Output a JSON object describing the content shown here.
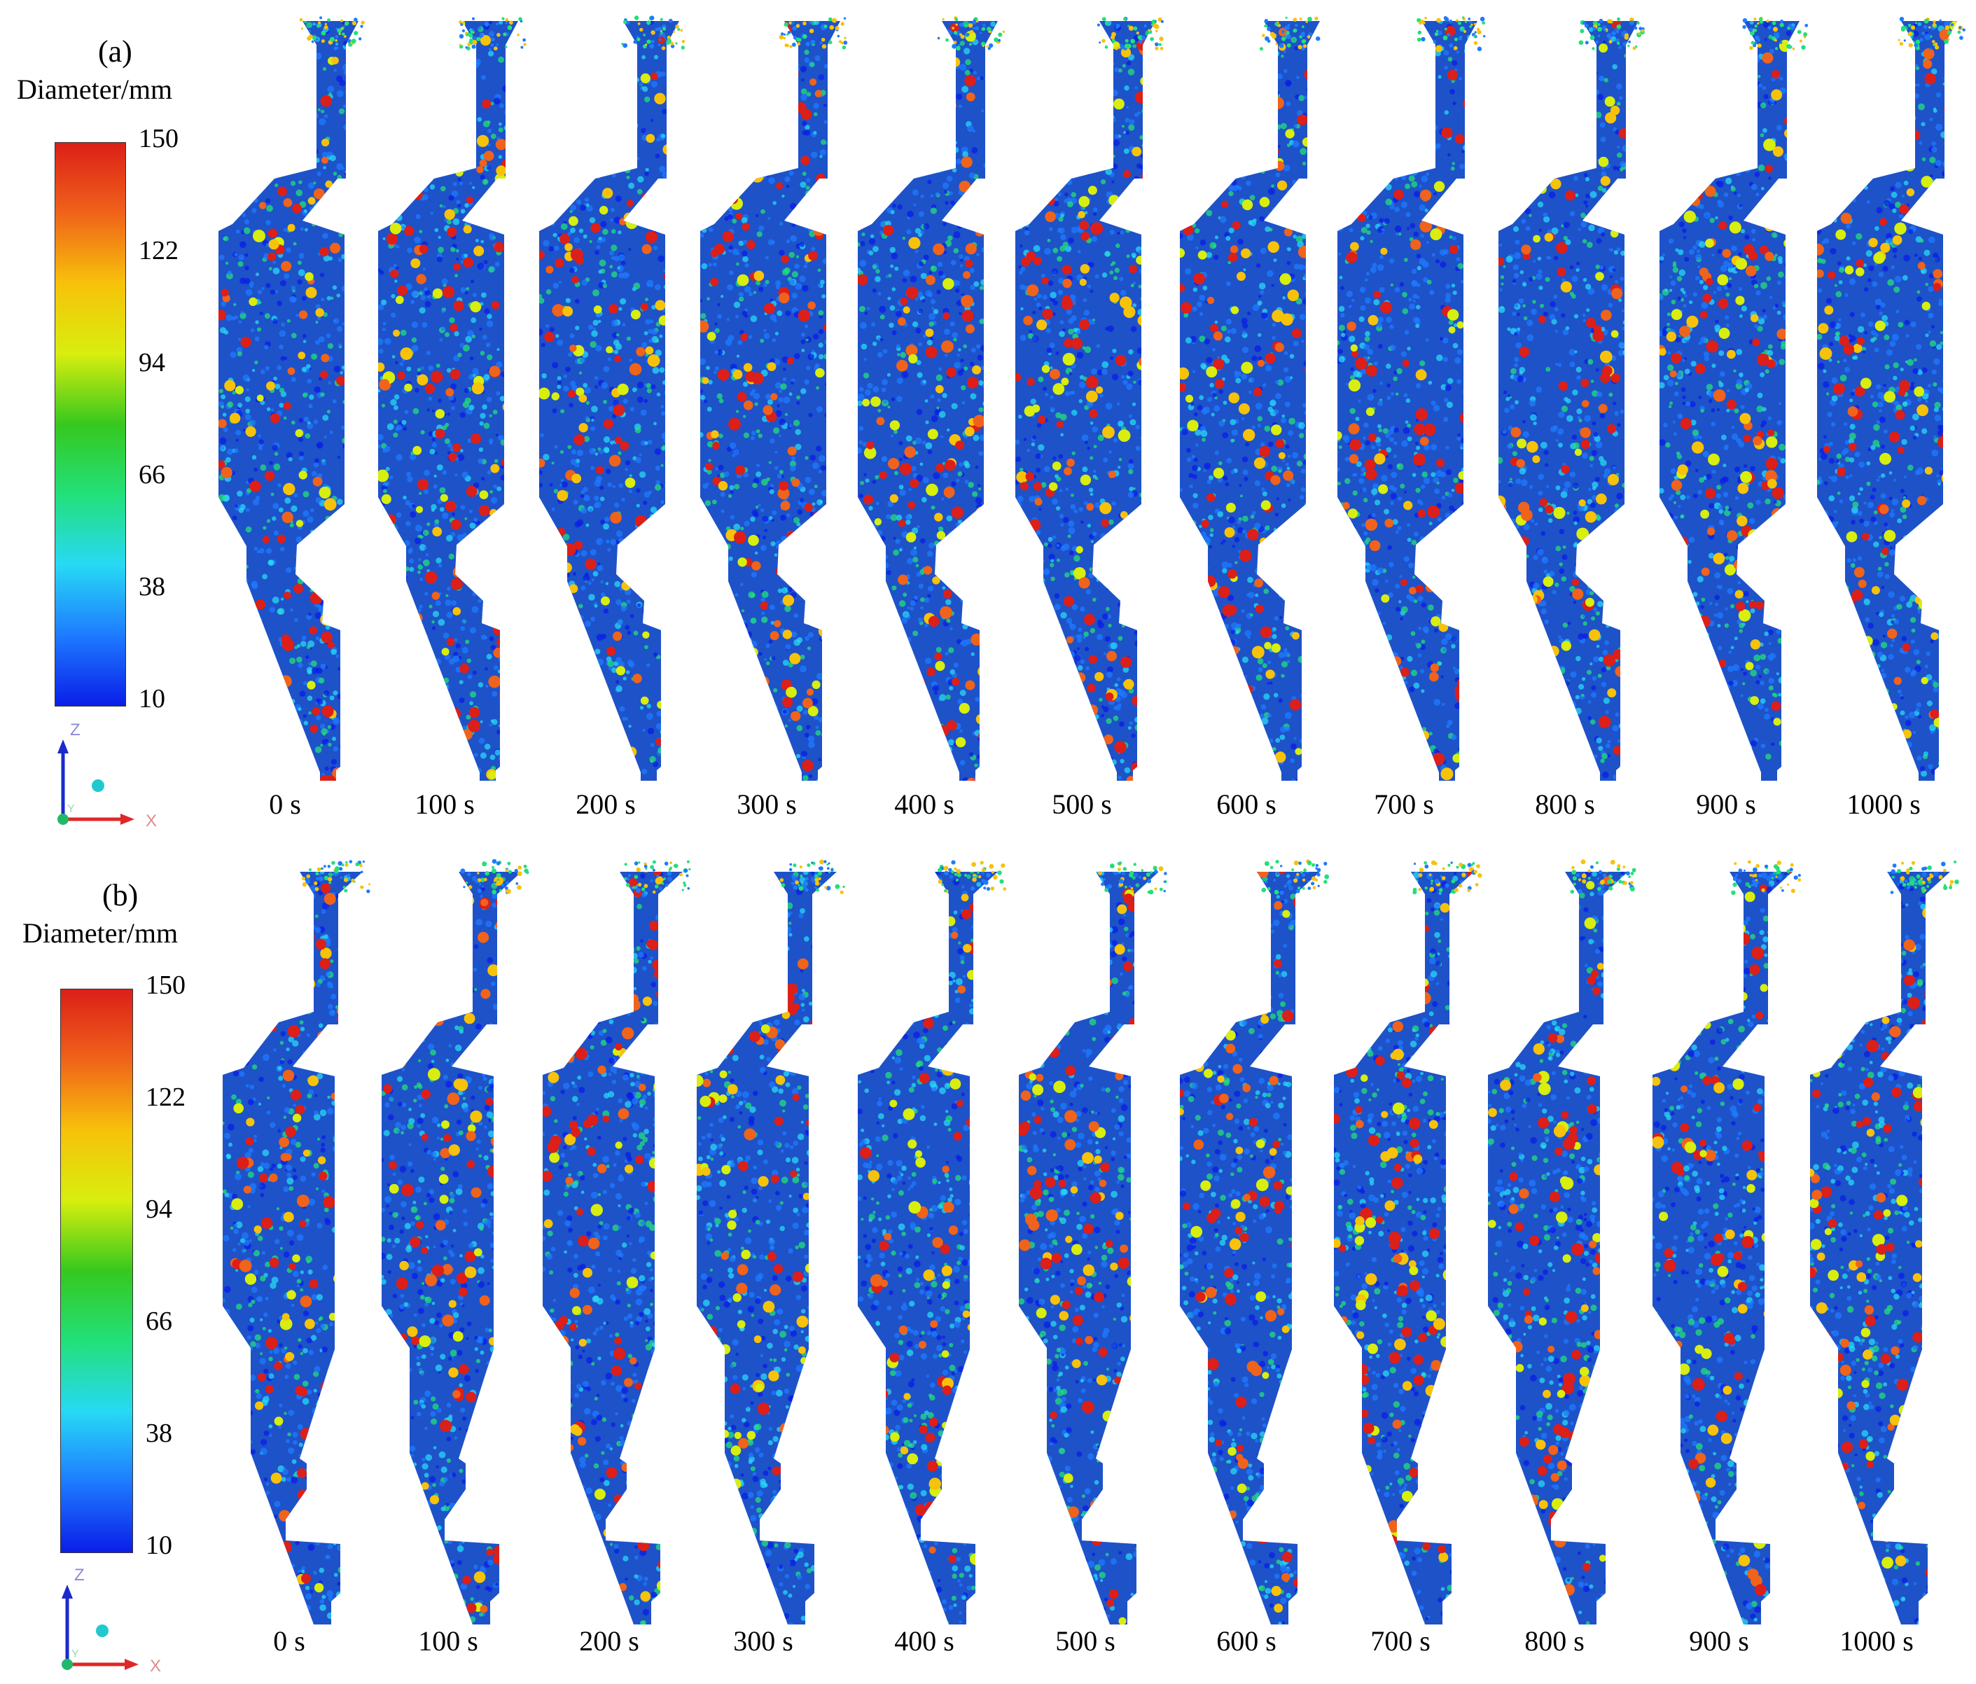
{
  "colors": {
    "colormap": [
      "#0a1ee8",
      "#1e7bff",
      "#27d9f5",
      "#22e07a",
      "#36c81e",
      "#d8ee0e",
      "#f7c20a",
      "#f0631a",
      "#dc1f18"
    ],
    "wall": "#1e52c8",
    "axis_z": "#1a2acd",
    "axis_x": "#e02727",
    "axis_y": "#22b86a"
  },
  "panels": [
    {
      "label": "(a)",
      "colorbar": {
        "title": "Diameter/mm",
        "ticks": [
          "150",
          "122",
          "94",
          "66",
          "38",
          "10"
        ]
      },
      "axes": {
        "z": "Z",
        "x": "X",
        "y": "Y"
      },
      "times": [
        "0 s",
        "100 s",
        "200 s",
        "300 s",
        "400 s",
        "500 s",
        "600 s",
        "700 s",
        "800 s",
        "900 s",
        "1000 s"
      ]
    },
    {
      "label": "(b)",
      "colorbar": {
        "title": "Diameter/mm",
        "ticks": [
          "150",
          "122",
          "94",
          "66",
          "38",
          "10"
        ]
      },
      "axes": {
        "z": "Z",
        "x": "X",
        "y": "Y"
      },
      "times": [
        "0 s",
        "100 s",
        "200 s",
        "300 s",
        "400 s",
        "500 s",
        "600 s",
        "700 s",
        "800 s",
        "900 s",
        "1000 s"
      ]
    }
  ]
}
